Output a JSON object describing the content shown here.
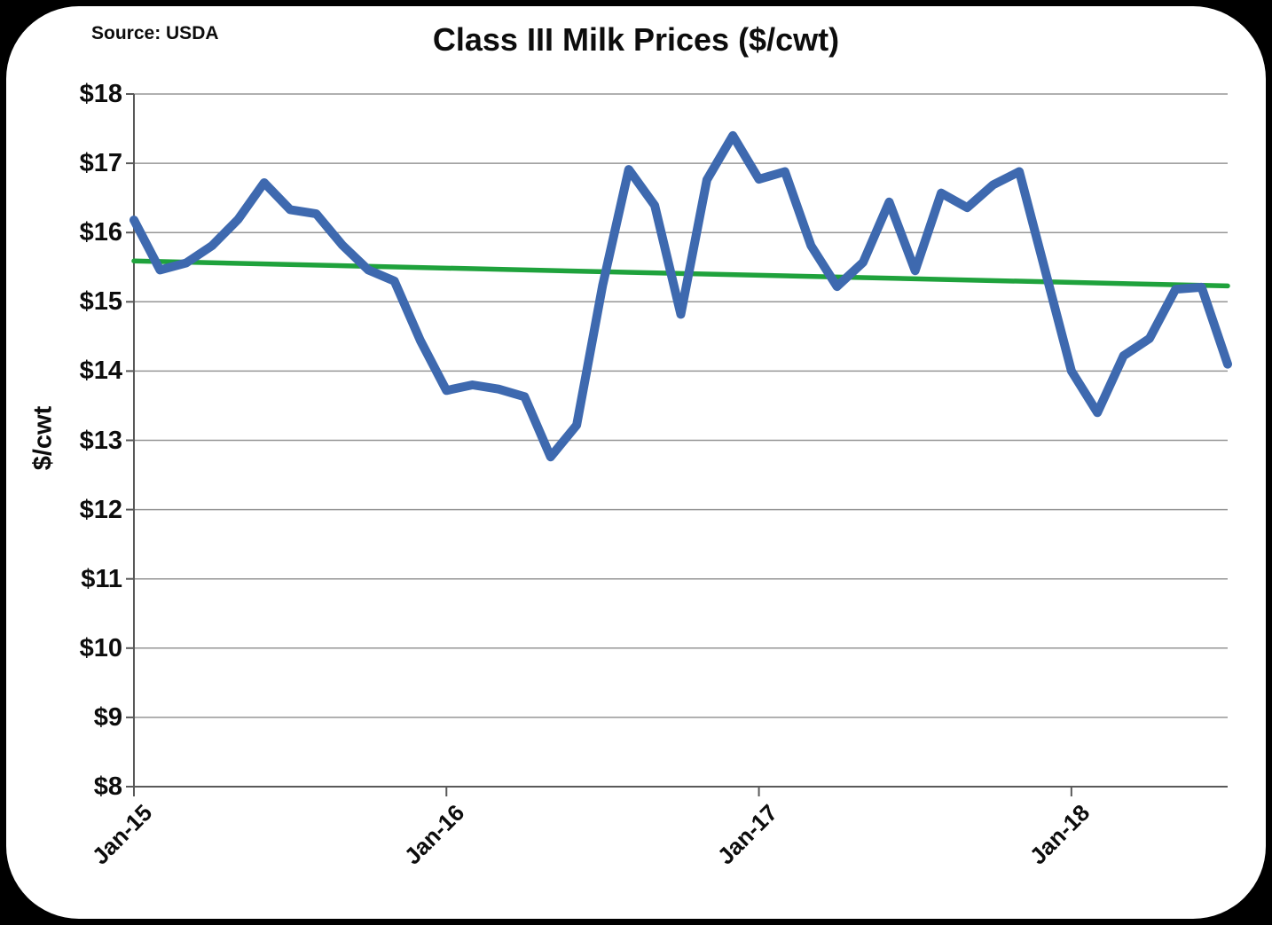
{
  "page": {
    "title": "Class III Milk Prices ($/cwt)",
    "source_note": "Source: USDA"
  },
  "chart_data": {
    "type": "line",
    "title": "Class III Milk Prices ($/cwt)",
    "source_note": "Source: USDA",
    "xlabel": "",
    "ylabel": "$/cwt",
    "ylim": [
      8,
      18
    ],
    "y_tick_step": 1,
    "y_tick_labels": [
      "$8",
      "$9",
      "$10",
      "$11",
      "$12",
      "$13",
      "$14",
      "$15",
      "$16",
      "$17",
      "$18"
    ],
    "x_tick_labels": [
      "Jan-15",
      "Jan-16",
      "Jan-17",
      "Jan-18"
    ],
    "x_tick_month_indices": [
      0,
      12,
      24,
      36
    ],
    "grid": "horizontal-gridlines-on",
    "legend": "none",
    "categories": [
      "Jan-15",
      "Feb-15",
      "Mar-15",
      "Apr-15",
      "May-15",
      "Jun-15",
      "Jul-15",
      "Aug-15",
      "Sep-15",
      "Oct-15",
      "Nov-15",
      "Dec-15",
      "Jan-16",
      "Feb-16",
      "Mar-16",
      "Apr-16",
      "May-16",
      "Jun-16",
      "Jul-16",
      "Aug-16",
      "Sep-16",
      "Oct-16",
      "Nov-16",
      "Dec-16",
      "Jan-17",
      "Feb-17",
      "Mar-17",
      "Apr-17",
      "May-17",
      "Jun-17",
      "Jul-17",
      "Aug-17",
      "Sep-17",
      "Oct-17",
      "Nov-17",
      "Dec-17",
      "Jan-18",
      "Feb-18",
      "Mar-18",
      "Apr-18",
      "May-18",
      "Jun-18",
      "Jul-18"
    ],
    "series": [
      {
        "name": "Class III milk price ($/cwt)",
        "color": "#3E69AF",
        "values": [
          16.18,
          15.46,
          15.56,
          15.81,
          16.19,
          16.72,
          16.33,
          16.27,
          15.82,
          15.46,
          15.3,
          14.44,
          13.72,
          13.8,
          13.74,
          13.63,
          12.76,
          13.22,
          15.24,
          16.91,
          16.39,
          14.82,
          16.76,
          17.4,
          16.77,
          16.88,
          15.81,
          15.22,
          15.57,
          16.44,
          15.45,
          16.57,
          16.36,
          16.69,
          16.88,
          15.44,
          14.0,
          13.4,
          14.22,
          14.47,
          15.18,
          15.21,
          14.1
        ]
      }
    ],
    "trendline": {
      "type": "linear-ols",
      "color": "#1FA23C",
      "start_value": 15.59,
      "end_value": 15.23
    },
    "style_colors": {
      "gridline": "#969696",
      "axis": "#595959",
      "text": "#0d0d0d",
      "background": "#ffffff",
      "outer_border": "#000000"
    }
  }
}
